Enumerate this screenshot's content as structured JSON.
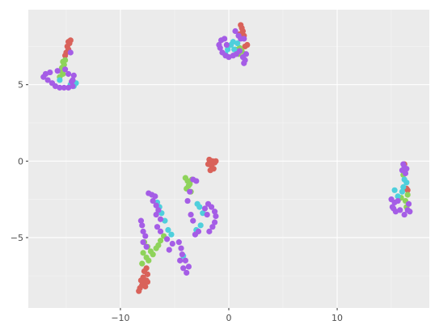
{
  "chart_data": {
    "type": "scatter",
    "title": "",
    "xlabel": "",
    "ylabel": "",
    "xlim": [
      -18.5,
      18.5
    ],
    "ylim": [
      -9.6,
      9.9
    ],
    "x_ticks": [
      -10,
      0,
      10
    ],
    "y_ticks": [
      -5,
      0,
      5
    ],
    "x_tick_labels": [
      "−10",
      "0",
      "10"
    ],
    "y_tick_labels": [
      "−5",
      "0",
      "5"
    ],
    "x_minor_ticks": [
      -15,
      -5,
      5,
      15
    ],
    "y_minor_ticks": [
      -7.5,
      -2.5,
      2.5,
      7.5
    ],
    "grid": true,
    "legend": "none",
    "colors": {
      "panel_bg": "#ebebeb",
      "grid_major": "#ffffff",
      "grid_minor": "#f5f5f5",
      "series": [
        "#f8766d",
        "#7cae00",
        "#00bfc4",
        "#c77cff"
      ]
    },
    "series": [
      {
        "color": "#d9625a",
        "points": [
          [
            -14.8,
            7.8
          ],
          [
            -14.7,
            7.7
          ],
          [
            -14.9,
            7.5
          ],
          [
            -14.8,
            7.3
          ],
          [
            -15.0,
            7.1
          ],
          [
            -15.1,
            6.9
          ],
          [
            -14.6,
            7.9
          ],
          [
            1.1,
            8.9
          ],
          [
            1.2,
            8.7
          ],
          [
            1.3,
            8.5
          ],
          [
            1.0,
            8.3
          ],
          [
            1.4,
            8.2
          ],
          [
            1.7,
            7.6
          ],
          [
            1.5,
            7.5
          ],
          [
            -1.8,
            0.1
          ],
          [
            -1.5,
            0.0
          ],
          [
            -1.3,
            -0.1
          ],
          [
            -1.6,
            -0.3
          ],
          [
            -1.4,
            -0.5
          ],
          [
            -1.7,
            -0.6
          ],
          [
            -1.2,
            0.0
          ],
          [
            -1.9,
            -0.2
          ],
          [
            -7.6,
            -7.0
          ],
          [
            -7.8,
            -7.2
          ],
          [
            -7.5,
            -7.4
          ],
          [
            -7.9,
            -7.6
          ],
          [
            -7.6,
            -7.8
          ],
          [
            -7.8,
            -8.0
          ],
          [
            -8.0,
            -8.1
          ],
          [
            -7.7,
            -8.2
          ],
          [
            -8.2,
            -8.3
          ],
          [
            -8.3,
            -8.5
          ],
          [
            -7.5,
            -7.9
          ],
          [
            -8.1,
            -7.8
          ],
          [
            16.2,
            -0.2
          ],
          [
            16.4,
            -1.8
          ],
          [
            16.5,
            -1.9
          ]
        ]
      },
      {
        "color": "#8ed35a",
        "points": [
          [
            -15.3,
            6.5
          ],
          [
            -15.2,
            6.3
          ],
          [
            -15.4,
            6.1
          ],
          [
            -15.5,
            5.9
          ],
          [
            -15.3,
            5.7
          ],
          [
            -15.6,
            5.5
          ],
          [
            -15.1,
            6.6
          ],
          [
            1.0,
            7.4
          ],
          [
            1.2,
            7.2
          ],
          [
            0.9,
            7.0
          ],
          [
            1.5,
            7.0
          ],
          [
            0.6,
            7.3
          ],
          [
            -4.0,
            -1.1
          ],
          [
            -3.8,
            -1.3
          ],
          [
            -3.6,
            -1.5
          ],
          [
            -3.9,
            -1.8
          ],
          [
            -3.5,
            -2.0
          ],
          [
            -3.7,
            -1.6
          ],
          [
            -3.4,
            -1.2
          ],
          [
            -7.8,
            -5.3
          ],
          [
            -7.5,
            -5.6
          ],
          [
            -7.2,
            -5.9
          ],
          [
            -7.0,
            -6.1
          ],
          [
            -7.6,
            -6.3
          ],
          [
            -7.9,
            -6.0
          ],
          [
            -6.7,
            -5.7
          ],
          [
            -6.5,
            -5.5
          ],
          [
            -8.0,
            -6.7
          ],
          [
            -7.4,
            -6.5
          ],
          [
            -6.3,
            -5.2
          ],
          [
            -6.0,
            -4.9
          ],
          [
            16.1,
            -0.9
          ],
          [
            16.5,
            -2.2
          ],
          [
            16.3,
            -2.6
          ],
          [
            16.4,
            -3.0
          ],
          [
            15.9,
            -2.4
          ]
        ]
      },
      {
        "color": "#4fcfdc",
        "points": [
          [
            -14.1,
            5.1
          ],
          [
            -14.3,
            4.9
          ],
          [
            -15.6,
            5.3
          ],
          [
            -14.6,
            5.0
          ],
          [
            0.2,
            7.6
          ],
          [
            0.4,
            7.8
          ],
          [
            0.5,
            7.3
          ],
          [
            -0.3,
            7.0
          ],
          [
            -0.1,
            7.3
          ],
          [
            0.8,
            7.7
          ],
          [
            -2.9,
            -2.8
          ],
          [
            -2.7,
            -3.0
          ],
          [
            -2.4,
            -3.4
          ],
          [
            -2.6,
            -4.2
          ],
          [
            -3.0,
            -4.5
          ],
          [
            -6.6,
            -2.7
          ],
          [
            -6.4,
            -3.0
          ],
          [
            -6.2,
            -3.4
          ],
          [
            -5.9,
            -3.9
          ],
          [
            -5.6,
            -4.5
          ],
          [
            -5.3,
            -4.8
          ],
          [
            -4.2,
            -6.2
          ],
          [
            16.2,
            -1.2
          ],
          [
            16.4,
            -1.4
          ],
          [
            16.1,
            -1.7
          ],
          [
            15.3,
            -1.9
          ],
          [
            15.6,
            -2.3
          ],
          [
            16.0,
            -2.0
          ]
        ]
      },
      {
        "color": "#a55de6",
        "points": [
          [
            -14.6,
            7.1
          ],
          [
            -15.1,
            6.0
          ],
          [
            -15.8,
            5.9
          ],
          [
            -16.5,
            5.8
          ],
          [
            -16.9,
            5.7
          ],
          [
            -17.1,
            5.5
          ],
          [
            -16.7,
            5.3
          ],
          [
            -16.3,
            5.1
          ],
          [
            -16.0,
            4.9
          ],
          [
            -15.6,
            4.8
          ],
          [
            -15.2,
            4.8
          ],
          [
            -14.8,
            4.8
          ],
          [
            -14.4,
            4.9
          ],
          [
            -14.4,
            5.3
          ],
          [
            -14.8,
            5.7
          ],
          [
            -14.3,
            5.6
          ],
          [
            -14.5,
            5.2
          ],
          [
            -0.9,
            7.6
          ],
          [
            -0.7,
            7.9
          ],
          [
            -0.4,
            8.0
          ],
          [
            -0.8,
            7.4
          ],
          [
            -0.6,
            7.1
          ],
          [
            -0.3,
            6.9
          ],
          [
            0.0,
            6.8
          ],
          [
            0.4,
            6.9
          ],
          [
            0.7,
            7.0
          ],
          [
            1.0,
            7.2
          ],
          [
            1.3,
            6.8
          ],
          [
            1.5,
            6.6
          ],
          [
            1.4,
            6.4
          ],
          [
            1.6,
            7.0
          ],
          [
            0.9,
            8.2
          ],
          [
            1.1,
            8.0
          ],
          [
            0.6,
            8.5
          ],
          [
            1.4,
            8.0
          ],
          [
            -0.2,
            7.6
          ],
          [
            -3.3,
            -1.2
          ],
          [
            -3.0,
            -1.3
          ],
          [
            -3.6,
            -2.0
          ],
          [
            -3.8,
            -2.6
          ],
          [
            -3.5,
            -3.5
          ],
          [
            -3.3,
            -3.9
          ],
          [
            -2.8,
            -4.6
          ],
          [
            -3.1,
            -4.8
          ],
          [
            -1.8,
            -4.6
          ],
          [
            -1.5,
            -4.3
          ],
          [
            -1.3,
            -4.0
          ],
          [
            -1.2,
            -3.6
          ],
          [
            -1.3,
            -3.3
          ],
          [
            -1.6,
            -3.0
          ],
          [
            -1.9,
            -2.8
          ],
          [
            -2.2,
            -3.1
          ],
          [
            -2.0,
            -3.5
          ],
          [
            -7.4,
            -2.1
          ],
          [
            -7.1,
            -2.2
          ],
          [
            -6.8,
            -2.3
          ],
          [
            -7.0,
            -2.6
          ],
          [
            -6.7,
            -2.9
          ],
          [
            -6.5,
            -3.2
          ],
          [
            -6.7,
            -3.5
          ],
          [
            -6.3,
            -3.8
          ],
          [
            -8.1,
            -3.9
          ],
          [
            -8.0,
            -4.2
          ],
          [
            -7.9,
            -4.6
          ],
          [
            -7.7,
            -4.9
          ],
          [
            -7.9,
            -5.3
          ],
          [
            -7.6,
            -5.6
          ],
          [
            -6.6,
            -4.3
          ],
          [
            -6.3,
            -4.6
          ],
          [
            -5.7,
            -5.1
          ],
          [
            -5.2,
            -5.4
          ],
          [
            -5.5,
            -5.8
          ],
          [
            -4.6,
            -5.3
          ],
          [
            -4.4,
            -5.7
          ],
          [
            -4.3,
            -6.1
          ],
          [
            -4.5,
            -6.5
          ],
          [
            -4.0,
            -6.5
          ],
          [
            -4.2,
            -7.0
          ],
          [
            -3.9,
            -7.3
          ],
          [
            -3.7,
            -6.9
          ],
          [
            15.0,
            -2.5
          ],
          [
            15.3,
            -2.7
          ],
          [
            15.1,
            -3.0
          ],
          [
            15.4,
            -3.3
          ],
          [
            15.8,
            -3.2
          ],
          [
            16.2,
            -3.5
          ],
          [
            16.5,
            -3.2
          ],
          [
            16.6,
            -2.8
          ],
          [
            15.6,
            -2.6
          ],
          [
            16.0,
            -0.6
          ],
          [
            16.3,
            -0.8
          ],
          [
            16.2,
            -0.4
          ],
          [
            16.4,
            -0.5
          ],
          [
            16.1,
            -0.2
          ],
          [
            15.2,
            -3.1
          ],
          [
            16.7,
            -3.3
          ]
        ]
      }
    ]
  }
}
